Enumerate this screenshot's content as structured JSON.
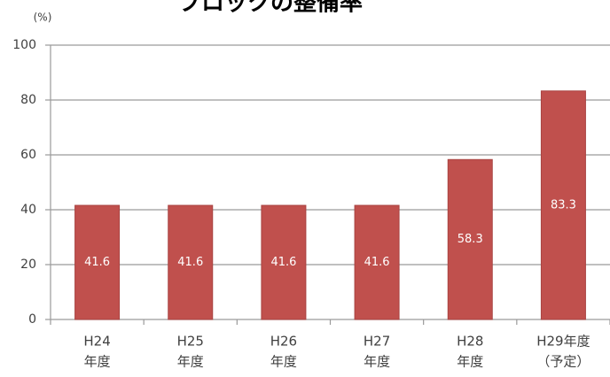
{
  "chart_data": {
    "type": "bar",
    "title": "ブロックの整備率",
    "y_label": "(%)",
    "categories": [
      [
        "H24",
        "年度"
      ],
      [
        "H25",
        "年度"
      ],
      [
        "H26",
        "年度"
      ],
      [
        "H27",
        "年度"
      ],
      [
        "H28",
        "年度"
      ],
      [
        "H29年度",
        "（予定）"
      ]
    ],
    "values": [
      41.6,
      41.6,
      41.6,
      41.6,
      58.3,
      83.3
    ],
    "color": "#c0504d",
    "ylim": [
      0,
      100
    ],
    "yticks": [
      0,
      20,
      40,
      60,
      80,
      100
    ],
    "grid": true
  }
}
